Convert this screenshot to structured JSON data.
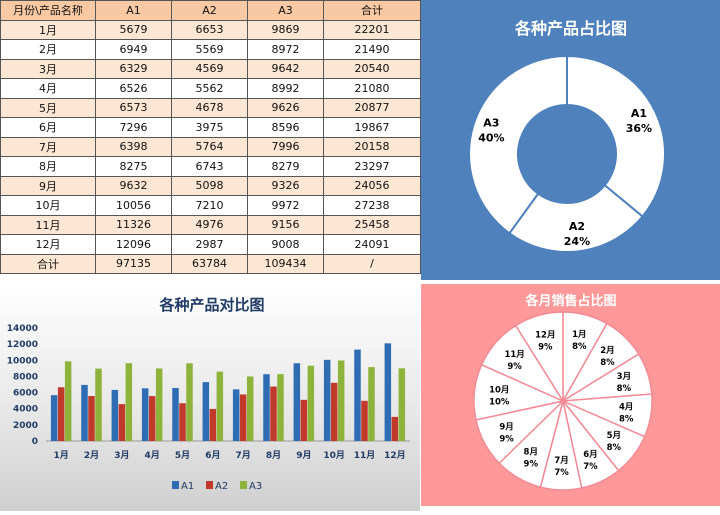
{
  "table": {
    "headers": [
      "月份\\产品名称",
      "A1",
      "A2",
      "A3",
      "合计"
    ],
    "rows": [
      [
        "1月",
        "5679",
        "6653",
        "9869",
        "22201"
      ],
      [
        "2月",
        "6949",
        "5569",
        "8972",
        "21490"
      ],
      [
        "3月",
        "6329",
        "4569",
        "9642",
        "20540"
      ],
      [
        "4月",
        "6526",
        "5562",
        "8992",
        "21080"
      ],
      [
        "5月",
        "6573",
        "4678",
        "9626",
        "20877"
      ],
      [
        "6月",
        "7296",
        "3975",
        "8596",
        "19867"
      ],
      [
        "7月",
        "6398",
        "5764",
        "7996",
        "20158"
      ],
      [
        "8月",
        "8275",
        "6743",
        "8279",
        "23297"
      ],
      [
        "9月",
        "9632",
        "5098",
        "9326",
        "24056"
      ],
      [
        "10月",
        "10056",
        "7210",
        "9972",
        "27238"
      ],
      [
        "11月",
        "11326",
        "4976",
        "9156",
        "25458"
      ],
      [
        "12月",
        "12096",
        "2987",
        "9008",
        "24091"
      ]
    ],
    "total": [
      "合计",
      "97135",
      "63784",
      "109434",
      "/"
    ]
  },
  "chart_data": [
    {
      "type": "pie",
      "title": "各种产品占比图",
      "labels": [
        "A1",
        "A2",
        "A3"
      ],
      "values": [
        36,
        24,
        40
      ],
      "percent_labels": [
        "36%",
        "24%",
        "40%"
      ],
      "donut": true,
      "background": "#4f81bd",
      "slice_color": "#ffffff",
      "label_color": "#000000"
    },
    {
      "type": "bar",
      "title": "各种产品对比图",
      "categories": [
        "1月",
        "2月",
        "3月",
        "4月",
        "5月",
        "6月",
        "7月",
        "8月",
        "9月",
        "10月",
        "11月",
        "12月"
      ],
      "series": [
        {
          "name": "A1",
          "color": "#2e6db4",
          "values": [
            5679,
            6949,
            6329,
            6526,
            6573,
            7296,
            6398,
            8275,
            9632,
            10056,
            11326,
            12096
          ]
        },
        {
          "name": "A2",
          "color": "#c0392b",
          "values": [
            6653,
            5569,
            4569,
            5562,
            4678,
            3975,
            5764,
            6743,
            5098,
            7210,
            4976,
            2987
          ]
        },
        {
          "name": "A3",
          "color": "#8db33a",
          "values": [
            9869,
            8972,
            9642,
            8992,
            9626,
            8596,
            7996,
            8279,
            9326,
            9972,
            9156,
            9008
          ]
        }
      ],
      "ylim": [
        0,
        14000
      ],
      "yticks": [
        "0",
        "2000",
        "4000",
        "6000",
        "8000",
        "10000",
        "12000",
        "14000"
      ],
      "legend": "bottom",
      "grid": false
    },
    {
      "type": "pie",
      "title": "各月销售占比图",
      "labels": [
        "1月",
        "2月",
        "3月",
        "4月",
        "5月",
        "6月",
        "7月",
        "8月",
        "9月",
        "10月",
        "11月",
        "12月"
      ],
      "values": [
        22201,
        21490,
        20540,
        21080,
        20877,
        19867,
        20158,
        23297,
        24056,
        27238,
        25458,
        24091
      ],
      "percent_labels": [
        "8%",
        "8%",
        "8%",
        "8%",
        "8%",
        "7%",
        "7%",
        "9%",
        "9%",
        "10%",
        "9%",
        "9%"
      ],
      "background": "#ff9999",
      "slice_color": "#ffffff",
      "border_color": "#f28b96"
    }
  ]
}
